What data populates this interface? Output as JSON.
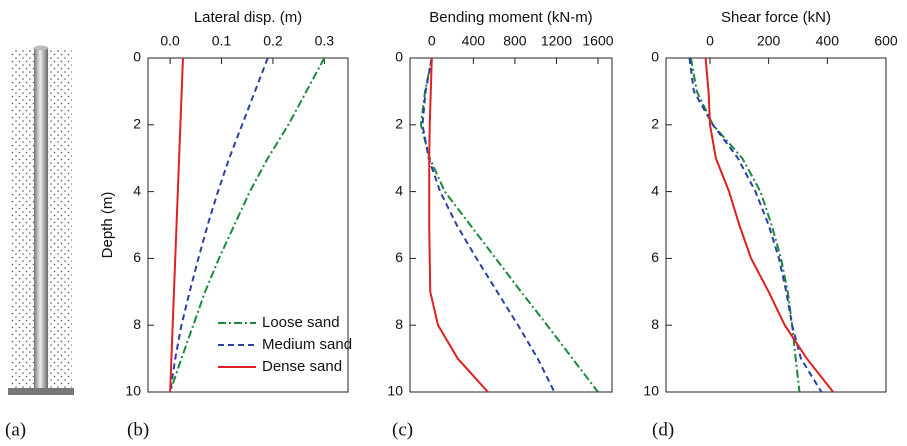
{
  "panel_labels": [
    "(a)",
    "(b)",
    "(c)",
    "(d)"
  ],
  "chart_data": [
    {
      "type": "line",
      "x_label": "Lateral disp. (m)",
      "y_label": "Depth (m)",
      "depths": [
        0,
        1,
        2,
        3,
        4,
        5,
        6,
        7,
        8,
        9,
        10
      ],
      "xlim": [
        -0.043,
        0.346
      ],
      "xticks": [
        {
          "value": 0,
          "label": "0.0"
        },
        0.1,
        0.2,
        0.3
      ],
      "ylim": [
        10,
        0
      ],
      "yticks": [
        0,
        2,
        4,
        6,
        8,
        10
      ],
      "legend": true,
      "series": [
        {
          "name": "Loose sand",
          "color": "#1a8a3a",
          "dash": "dashdot",
          "values": [
            0.3,
            0.265,
            0.23,
            0.19,
            0.155,
            0.125,
            0.095,
            0.068,
            0.045,
            0.022,
            0.0
          ]
        },
        {
          "name": "Medium sand",
          "color": "#2b3fa8",
          "dash": "dash",
          "values": [
            0.19,
            0.165,
            0.14,
            0.115,
            0.093,
            0.073,
            0.055,
            0.038,
            0.022,
            0.01,
            0.0
          ]
        },
        {
          "name": "Dense sand",
          "color": "#e02020",
          "dash": "solid",
          "values": [
            0.025,
            0.0225,
            0.02,
            0.0175,
            0.015,
            0.0125,
            0.01,
            0.0075,
            0.005,
            0.0025,
            0.0
          ]
        }
      ]
    },
    {
      "type": "line",
      "x_label": "Bending moment (kN-m)",
      "depths": [
        0,
        1,
        2,
        3,
        4,
        5,
        6,
        7,
        8,
        9,
        10
      ],
      "xlim": [
        -210,
        1735
      ],
      "xticks": [
        0,
        400,
        800,
        1200,
        1600
      ],
      "ylim": [
        10,
        0
      ],
      "yticks": [
        0,
        2,
        4,
        6,
        8,
        10
      ],
      "legend": false,
      "series": [
        {
          "name": "Loose sand",
          "color": "#1a8a3a",
          "dash": "dashdot",
          "values": [
            0,
            -65,
            -105,
            -20,
            125,
            370,
            615,
            860,
            1110,
            1355,
            1600
          ]
        },
        {
          "name": "Medium sand",
          "color": "#2b3fa8",
          "dash": "dash",
          "values": [
            0,
            -60,
            -90,
            -30,
            80,
            240,
            430,
            630,
            830,
            1020,
            1180
          ]
        },
        {
          "name": "Dense sand",
          "color": "#e02020",
          "dash": "solid",
          "values": [
            0,
            -10,
            -20,
            -25,
            -25,
            -25,
            -20,
            -15,
            60,
            250,
            540
          ]
        }
      ]
    },
    {
      "type": "line",
      "x_label": "Shear force (kN)",
      "depths": [
        0,
        1,
        2,
        3,
        4,
        5,
        6,
        7,
        8,
        9,
        10
      ],
      "xlim": [
        -150,
        600
      ],
      "xticks": [
        0,
        200,
        400,
        600
      ],
      "ylim": [
        10,
        0
      ],
      "yticks": [
        0,
        2,
        4,
        6,
        8,
        10
      ],
      "legend": false,
      "series": [
        {
          "name": "Loose sand",
          "color": "#1a8a3a",
          "dash": "dashdot",
          "values": [
            -65,
            -45,
            10,
            110,
            172,
            210,
            242,
            265,
            280,
            292,
            305
          ]
        },
        {
          "name": "Medium sand",
          "color": "#2b3fa8",
          "dash": "dash",
          "values": [
            -70,
            -55,
            10,
            95,
            155,
            200,
            235,
            260,
            280,
            310,
            380
          ]
        },
        {
          "name": "Dense sand",
          "color": "#e02020",
          "dash": "solid",
          "values": [
            -15,
            -5,
            0,
            20,
            65,
            100,
            140,
            200,
            255,
            330,
            420
          ]
        }
      ]
    }
  ]
}
